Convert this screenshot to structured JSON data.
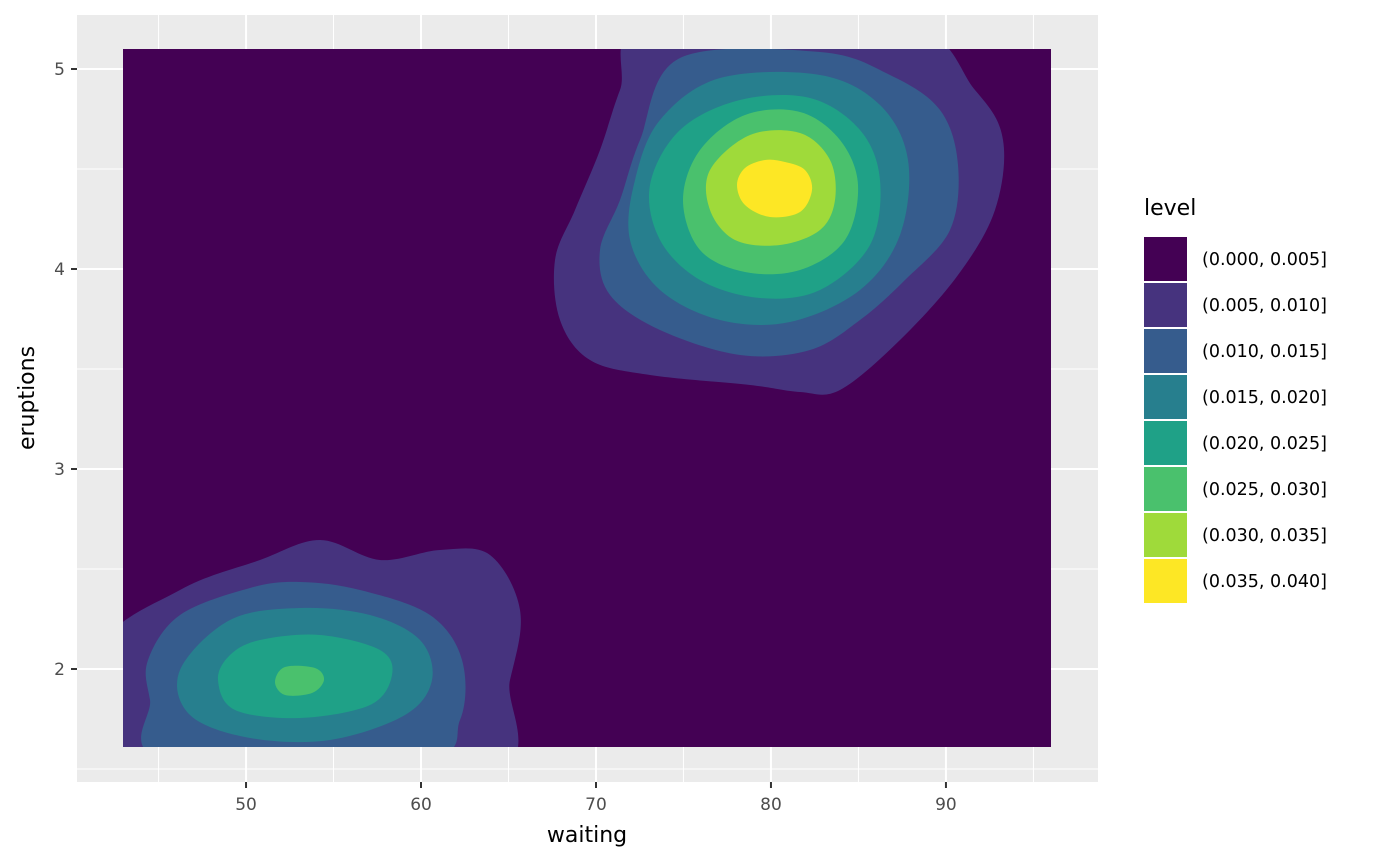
{
  "chart_data": {
    "type": "contour_filled",
    "x_label": "waiting",
    "y_label": "eruptions",
    "xlim": [
      40.34,
      98.69
    ],
    "ylim": [
      1.435,
      5.27
    ],
    "xticks": [
      50,
      60,
      70,
      80,
      90
    ],
    "yticks": [
      2,
      3,
      4,
      5
    ],
    "grid": true,
    "legend_title": "level",
    "legend_position": "right",
    "levels": [
      {
        "name": "(0.000, 0.005]",
        "color": "#440154"
      },
      {
        "name": "(0.005, 0.010]",
        "color": "#46337E"
      },
      {
        "name": "(0.010, 0.015]",
        "color": "#365C8D"
      },
      {
        "name": "(0.015, 0.020]",
        "color": "#277F8E"
      },
      {
        "name": "(0.020, 0.025]",
        "color": "#1FA187"
      },
      {
        "name": "(0.025, 0.030]",
        "color": "#4AC16D"
      },
      {
        "name": "(0.030, 0.035]",
        "color": "#9FDA3A"
      },
      {
        "name": "(0.035, 0.040]",
        "color": "#FDE725"
      }
    ]
  }
}
